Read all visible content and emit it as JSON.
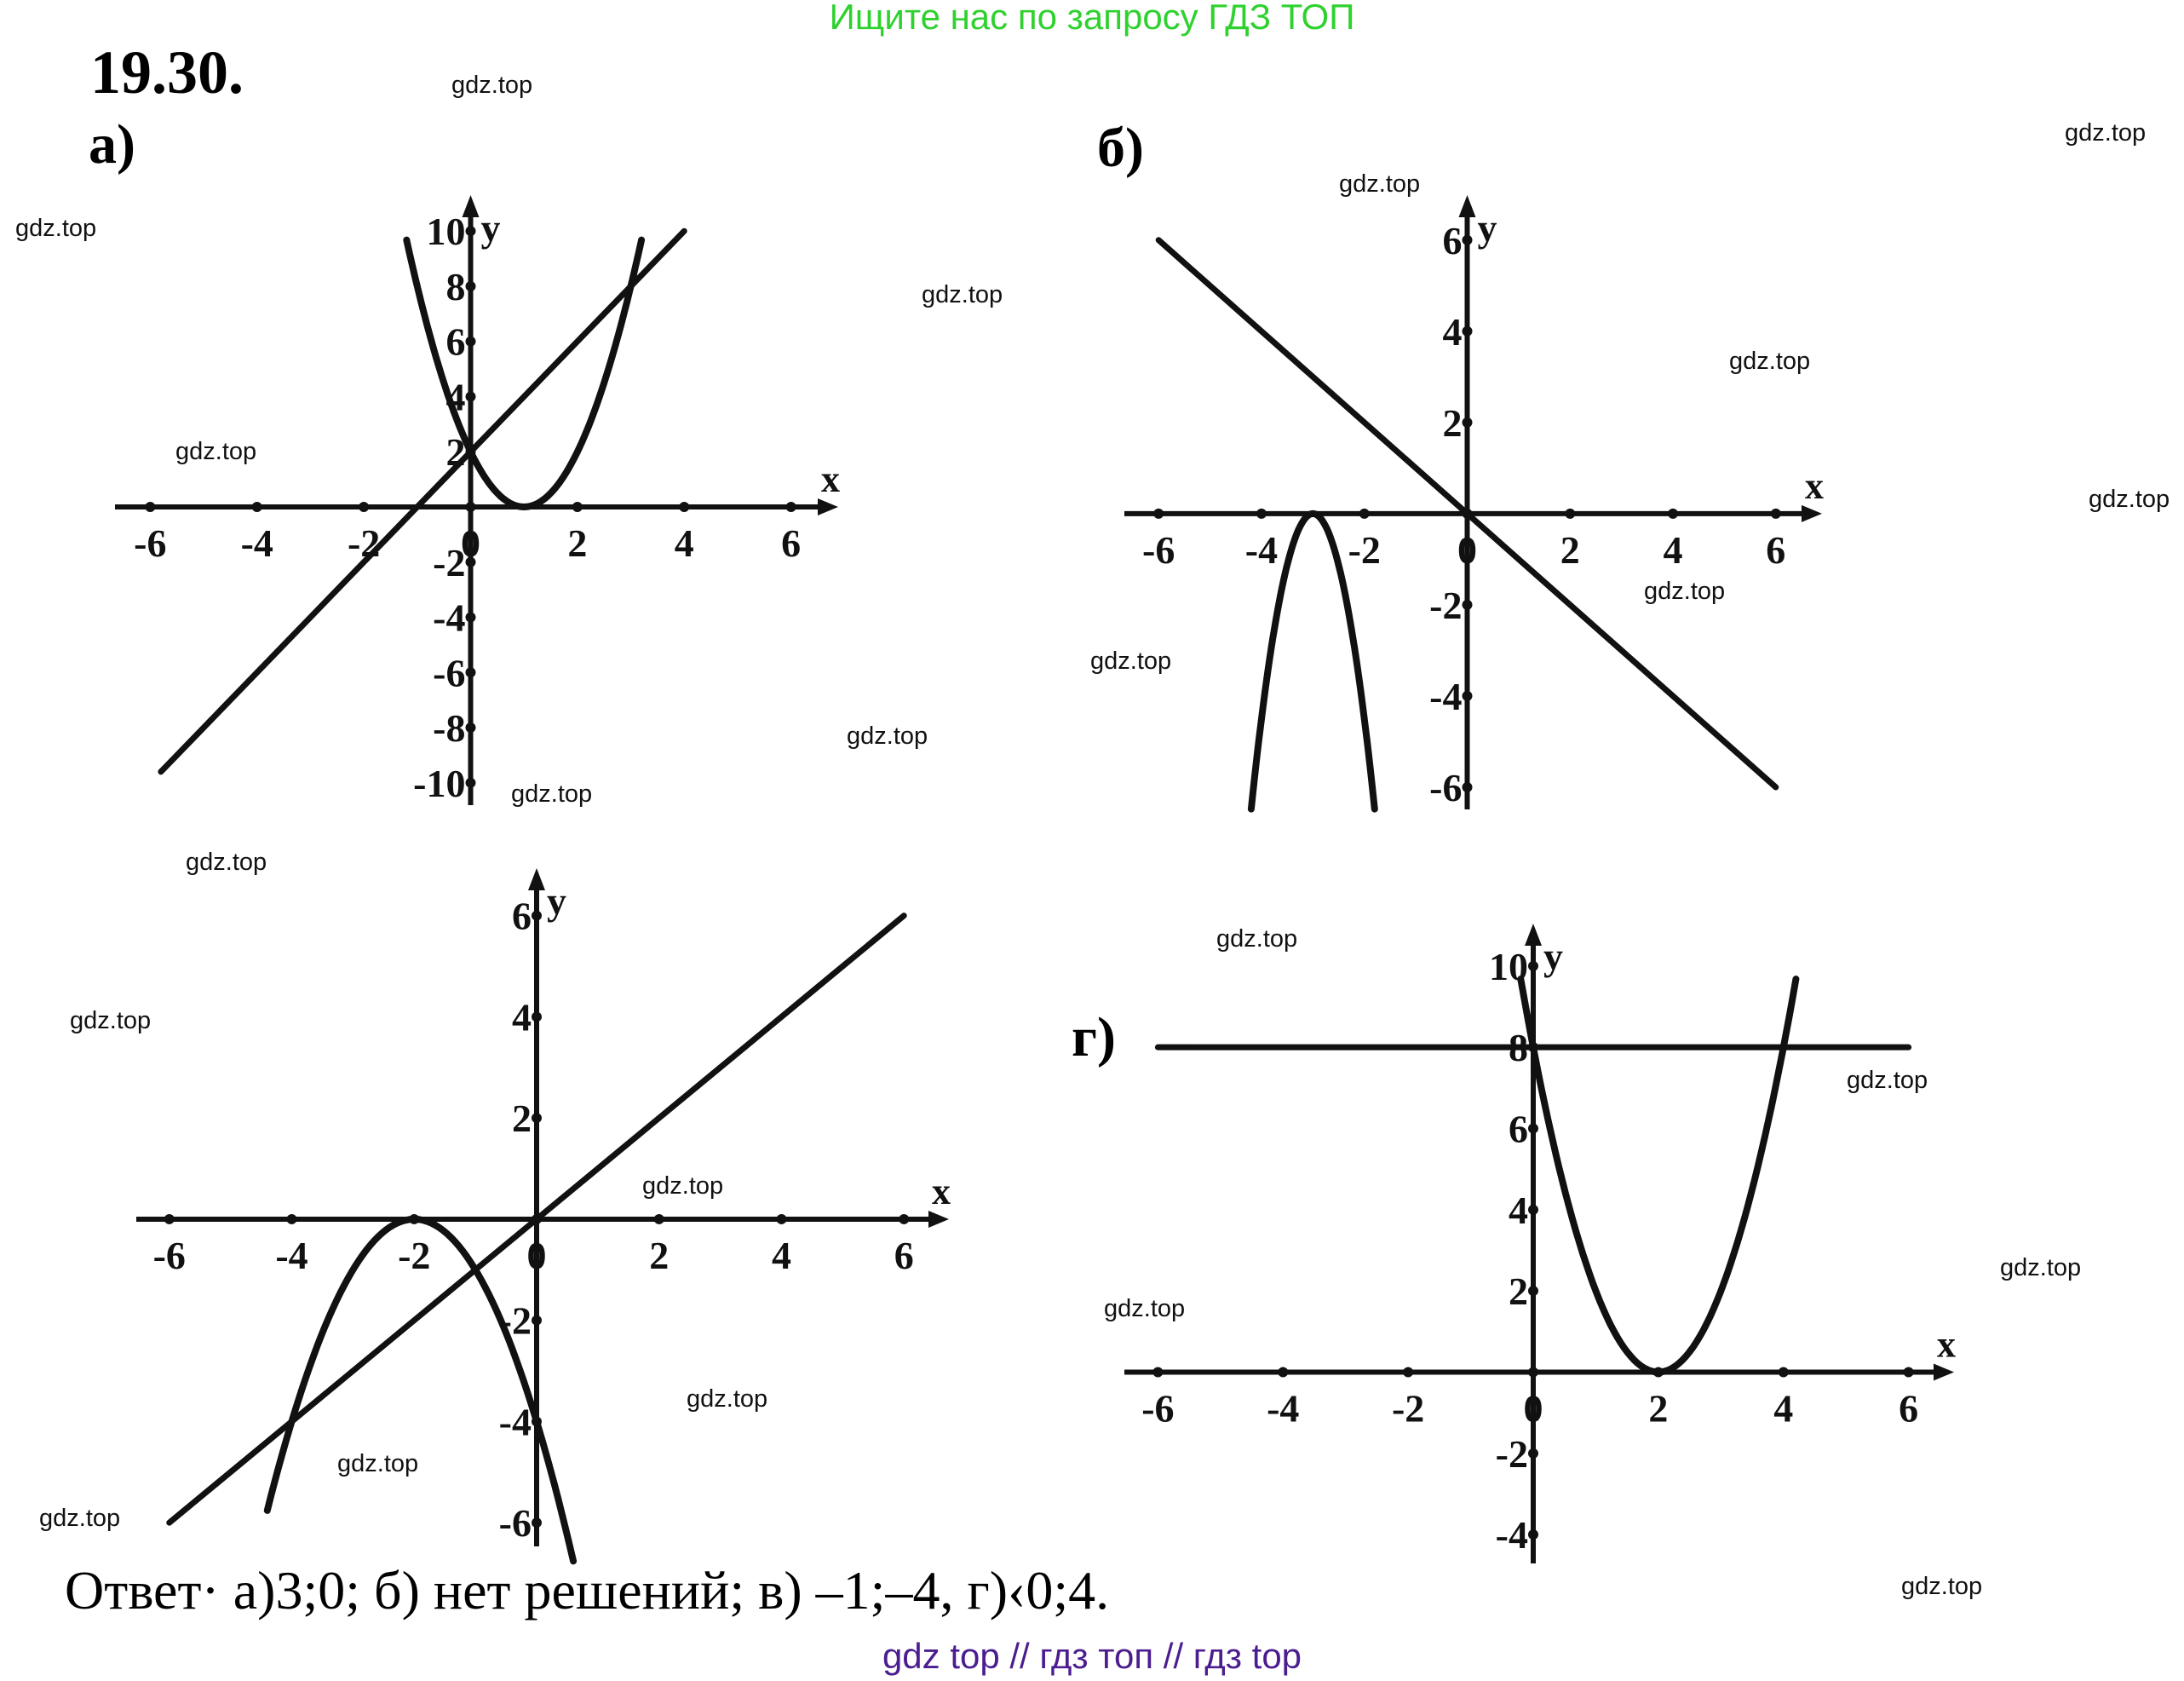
{
  "banner_top": {
    "text": "Ищите нас по запросу ГДЗ ТОП",
    "color": "#2fd12f"
  },
  "banner_bottom": {
    "text": "gdz top  //  гдз топ  //  гдз top",
    "color": "#4b1d8f"
  },
  "problem_number": "19.30.",
  "answer_text": "Ответ· а)3;0; б) нет решений; в) –1;–4, г)‹0;4.",
  "watermark_text": "gdz.top",
  "ink_color": "#111111",
  "chart_data": [
    {
      "id": "a",
      "label": "а)",
      "type": "line",
      "x_label": "x",
      "y_label": "y",
      "xlim": [
        -6.5,
        6.5
      ],
      "ylim": [
        -10.5,
        10.5
      ],
      "x_ticks": [
        -6,
        -4,
        -2,
        0,
        2,
        4,
        6
      ],
      "x_tick_labels": [
        "-6",
        "-4",
        "-2",
        "0",
        "2",
        "4",
        "6"
      ],
      "y_ticks": [
        10,
        8,
        6,
        4,
        2,
        -2,
        -4,
        -6,
        -8,
        -10
      ],
      "y_tick_labels": [
        "10",
        "8",
        "6",
        "4",
        "2",
        "-2",
        "-4",
        "-6",
        "-8",
        "-10"
      ],
      "series": [
        {
          "name": "parabola",
          "kind": "parabola",
          "a": 2,
          "h": 1,
          "k": 0,
          "x_range": [
            -1.2,
            3.2
          ]
        },
        {
          "name": "line",
          "kind": "line",
          "m": 2,
          "b": 2,
          "x_range": [
            -5.8,
            4
          ]
        }
      ]
    },
    {
      "id": "b",
      "label": "б)",
      "type": "line",
      "x_label": "x",
      "y_label": "y",
      "xlim": [
        -6.5,
        6.5
      ],
      "ylim": [
        -6.3,
        6.5
      ],
      "x_ticks": [
        -6,
        -4,
        -2,
        0,
        2,
        4,
        6
      ],
      "x_tick_labels": [
        "-6",
        "-4",
        "-2",
        "0",
        "2",
        "4",
        "6"
      ],
      "y_ticks": [
        6,
        4,
        2,
        -2,
        -4,
        -6
      ],
      "y_tick_labels": [
        "6",
        "4",
        "2",
        "-2",
        "-4",
        "-6"
      ],
      "series": [
        {
          "name": "parabola",
          "kind": "parabola",
          "a": -4.5,
          "h": -3,
          "k": 0,
          "x_range": [
            -4.2,
            -1.8
          ]
        },
        {
          "name": "line",
          "kind": "line",
          "m": -1,
          "b": 0,
          "x_range": [
            -6,
            6
          ]
        }
      ]
    },
    {
      "id": "v",
      "label": "",
      "type": "line",
      "x_label": "x",
      "y_label": "y",
      "xlim": [
        -6.4,
        6.4
      ],
      "ylim": [
        -6.3,
        6.5
      ],
      "x_ticks": [
        -6,
        -4,
        -2,
        0,
        2,
        4,
        6
      ],
      "x_tick_labels": [
        "-6",
        "-4",
        "-2",
        "0",
        "2",
        "4",
        "6"
      ],
      "y_ticks": [
        6,
        4,
        2,
        -2,
        -4,
        -6
      ],
      "y_tick_labels": [
        "6",
        "4",
        "2",
        "-2",
        "-4",
        "-6"
      ],
      "series": [
        {
          "name": "parabola",
          "kind": "parabola",
          "a": -1,
          "h": -2,
          "k": 0,
          "x_range": [
            -4.4,
            0.6
          ]
        },
        {
          "name": "line",
          "kind": "line",
          "m": 1,
          "b": 0,
          "x_range": [
            -6,
            6
          ]
        }
      ]
    },
    {
      "id": "g",
      "label": "г)",
      "type": "line",
      "x_label": "x",
      "y_label": "y",
      "xlim": [
        -6.4,
        6.4
      ],
      "ylim": [
        -4.5,
        10.5
      ],
      "x_ticks": [
        -6,
        -4,
        -2,
        0,
        2,
        4,
        6
      ],
      "x_tick_labels": [
        "-6",
        "-4",
        "-2",
        "0",
        "2",
        "4",
        "6"
      ],
      "y_ticks": [
        10,
        8,
        6,
        4,
        2,
        -2,
        -4
      ],
      "y_tick_labels": [
        "10",
        "8",
        "6",
        "4",
        "2",
        "-2",
        "-4"
      ],
      "series": [
        {
          "name": "parabola",
          "kind": "parabola",
          "a": 2,
          "h": 2,
          "k": 0,
          "x_range": [
            -0.2,
            4.2
          ]
        },
        {
          "name": "line",
          "kind": "line",
          "m": 0,
          "b": 8,
          "x_range": [
            -6,
            6
          ]
        }
      ]
    }
  ]
}
